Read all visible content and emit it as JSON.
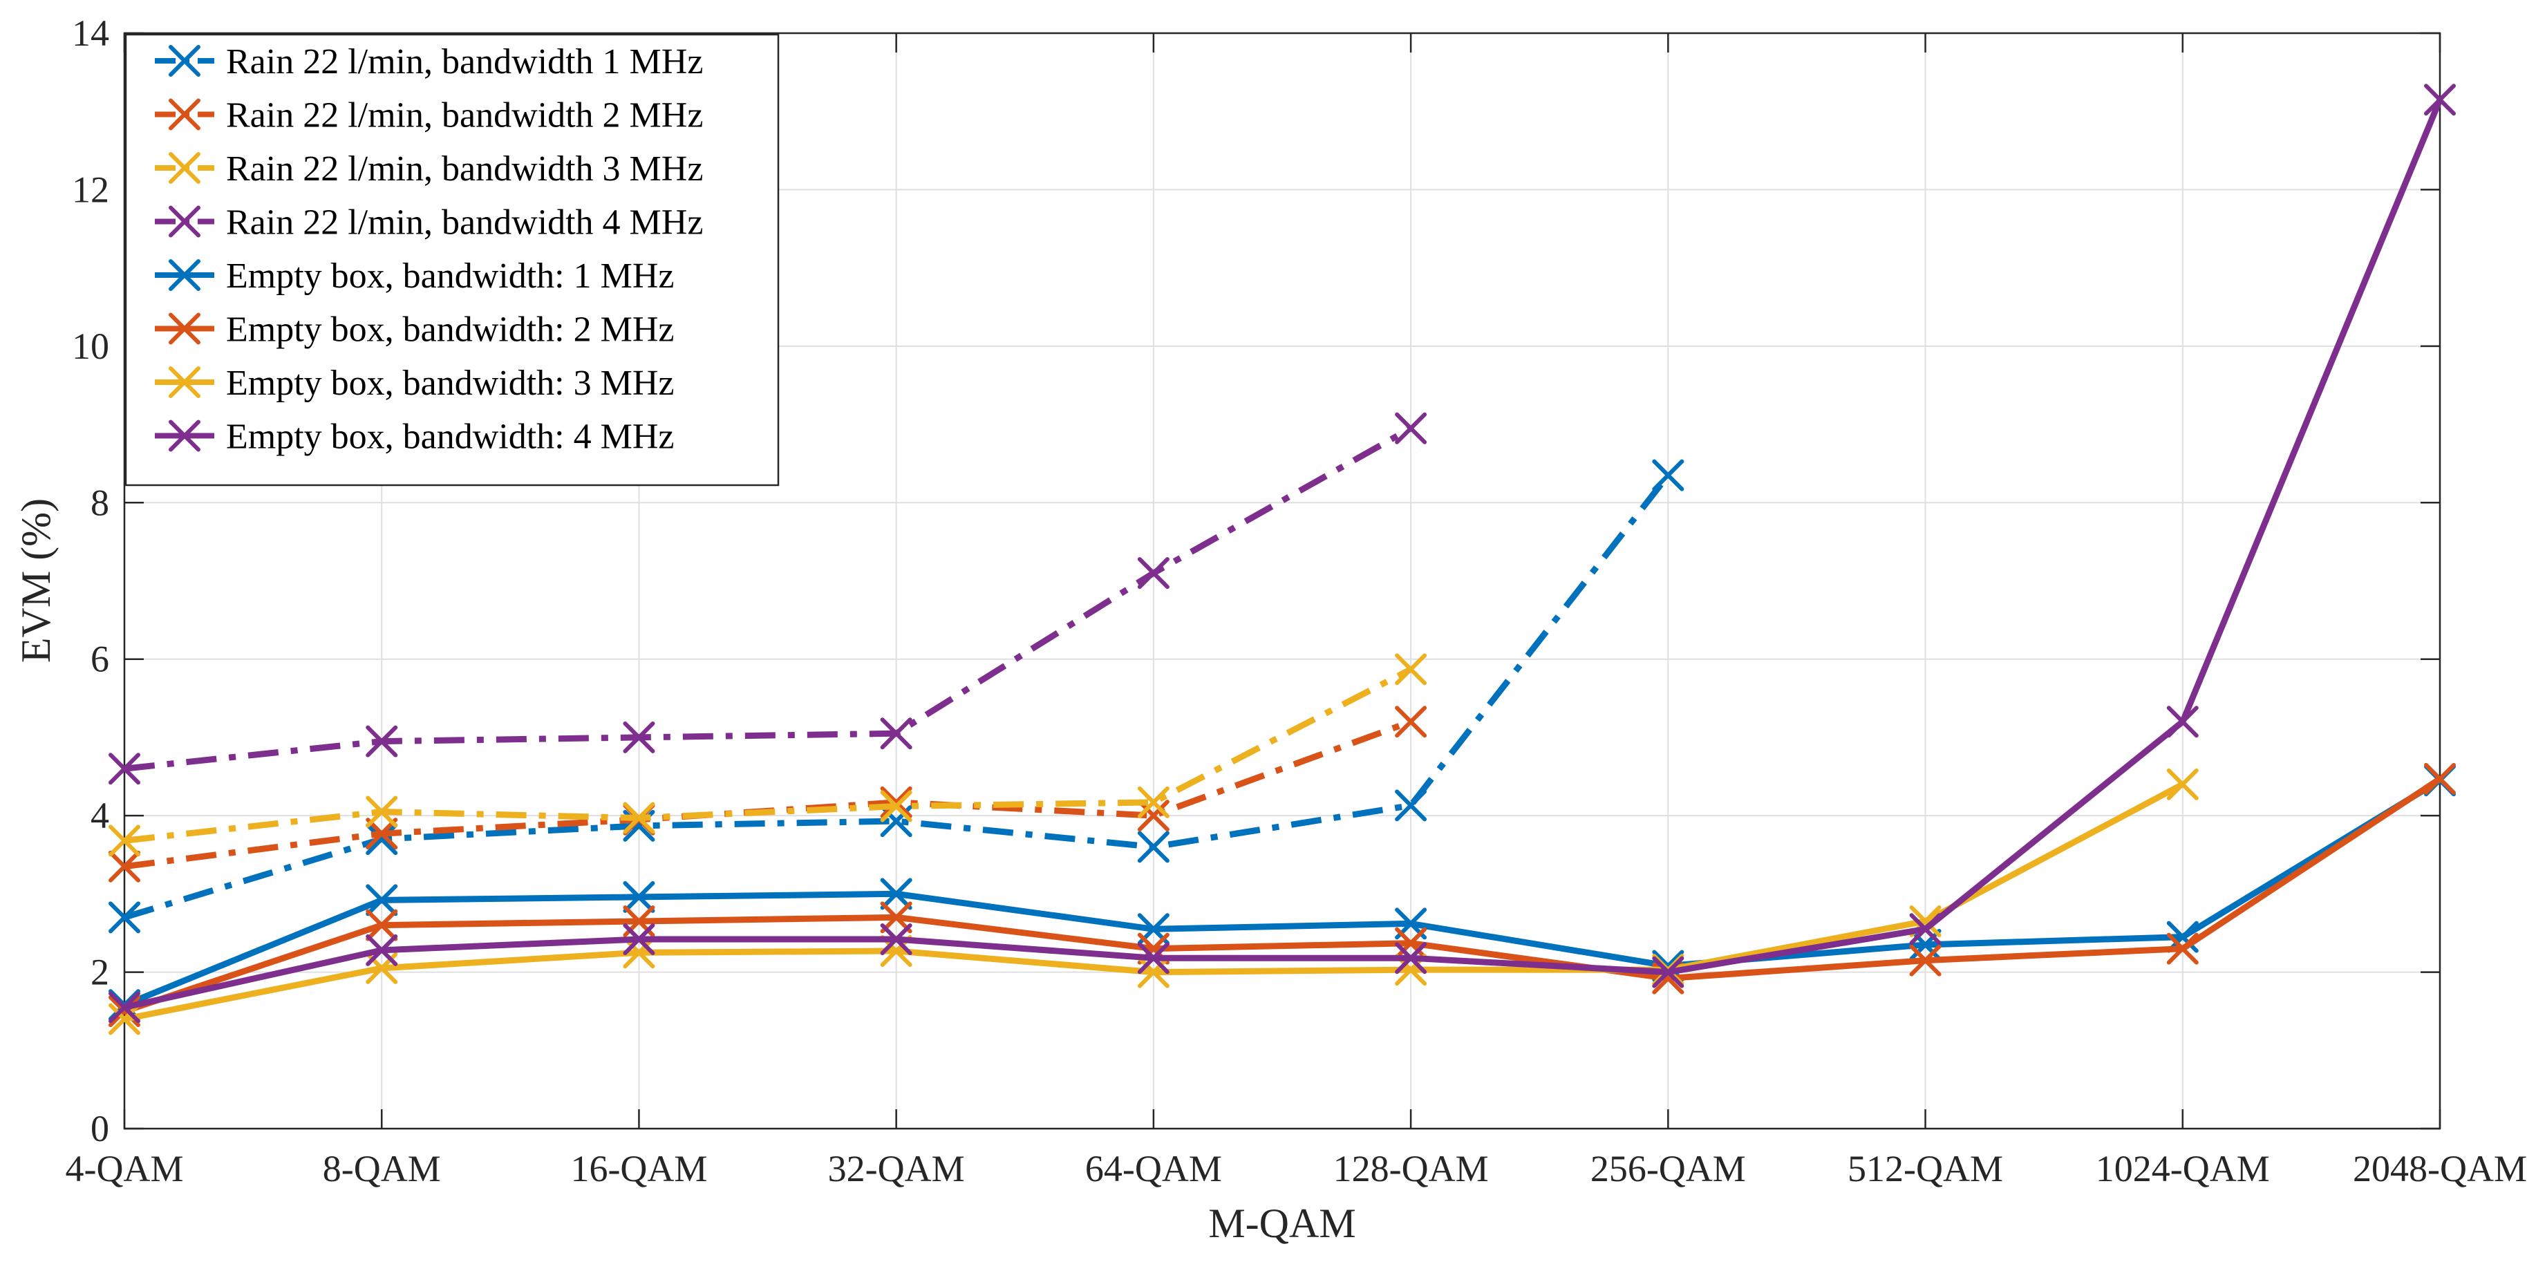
{
  "chart_data": {
    "type": "line",
    "title": "",
    "xlabel": "M-QAM",
    "ylabel": "EVM (%)",
    "categories": [
      "4-QAM",
      "8-QAM",
      "16-QAM",
      "32-QAM",
      "64-QAM",
      "128-QAM",
      "256-QAM",
      "512-QAM",
      "1024-QAM",
      "2048-QAM"
    ],
    "ylim": [
      0,
      14
    ],
    "yticks": [
      "0",
      "2",
      "4",
      "6",
      "8",
      "10",
      "12",
      "14"
    ],
    "grid": true,
    "legend_position": "top-left",
    "series": [
      {
        "name": "Rain 22 l/min, bandwidth 1 MHz",
        "color": "#0072BD",
        "style": "dashdot",
        "values": [
          2.7,
          3.7,
          3.87,
          3.93,
          3.6,
          4.13,
          8.35,
          null,
          null,
          null
        ]
      },
      {
        "name": "Rain 22 l/min, bandwidth 2 MHz",
        "color": "#D95319",
        "style": "dashdot",
        "values": [
          3.35,
          3.77,
          3.95,
          4.17,
          4.0,
          5.2,
          null,
          null,
          null,
          null
        ]
      },
      {
        "name": "Rain 22 l/min, bandwidth 3 MHz",
        "color": "#EDB120",
        "style": "dashdot",
        "values": [
          3.68,
          4.05,
          3.97,
          4.12,
          4.17,
          5.87,
          null,
          null,
          null,
          null
        ]
      },
      {
        "name": "Rain 22 l/min, bandwidth 4 MHz",
        "color": "#7E2F8E",
        "style": "dashdot",
        "values": [
          4.6,
          4.95,
          5.0,
          5.05,
          7.1,
          8.95,
          null,
          null,
          null,
          null
        ]
      },
      {
        "name": "Empty box, bandwidth: 1 MHz",
        "color": "#0072BD",
        "style": "solid",
        "values": [
          1.58,
          2.92,
          2.96,
          3.0,
          2.55,
          2.62,
          2.08,
          2.35,
          2.45,
          4.45
        ]
      },
      {
        "name": "Empty box, bandwidth: 2 MHz",
        "color": "#D95319",
        "style": "solid",
        "values": [
          1.5,
          2.6,
          2.65,
          2.7,
          2.3,
          2.37,
          1.92,
          2.15,
          2.3,
          4.47
        ]
      },
      {
        "name": "Empty box, bandwidth: 3 MHz",
        "color": "#EDB120",
        "style": "solid",
        "values": [
          1.4,
          2.05,
          2.25,
          2.27,
          2.0,
          2.03,
          2.03,
          2.65,
          4.4,
          null
        ]
      },
      {
        "name": "Empty box, bandwidth: 4 MHz",
        "color": "#7E2F8E",
        "style": "solid",
        "values": [
          1.55,
          2.28,
          2.42,
          2.42,
          2.18,
          2.18,
          2.0,
          2.55,
          5.2,
          13.15
        ]
      }
    ]
  }
}
